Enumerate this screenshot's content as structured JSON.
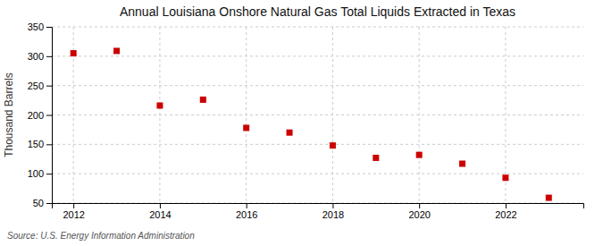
{
  "chart_data": {
    "type": "scatter",
    "title": "Annual Louisiana Onshore Natural Gas Total Liquids Extracted in Texas",
    "ylabel": "Thousand Barrels",
    "annotations": [
      "Source: U.S. Energy Information Administration"
    ],
    "x": [
      2012,
      2013,
      2014,
      2015,
      2016,
      2017,
      2018,
      2019,
      2020,
      2021,
      2022,
      2023
    ],
    "values": [
      305,
      309,
      216,
      226,
      178,
      170,
      148,
      127,
      132,
      117,
      93,
      59
    ],
    "color": "#cc0000",
    "marker": "square",
    "xlim": [
      2011.5,
      2023.8
    ],
    "xticks": [
      2012,
      2014,
      2016,
      2018,
      2020,
      2022
    ],
    "ylim": [
      50,
      350
    ],
    "yticks": [
      50,
      100,
      150,
      200,
      250,
      300,
      350
    ],
    "grid": true
  }
}
